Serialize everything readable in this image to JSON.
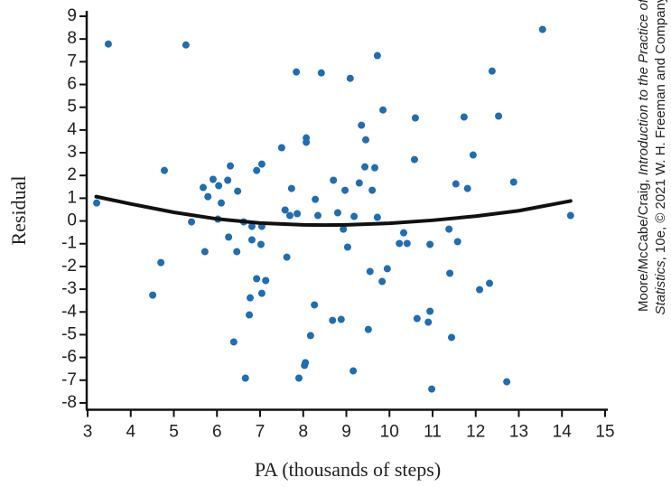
{
  "chart_data": {
    "type": "scatter",
    "xlabel": "PA (thousands of steps)",
    "ylabel": "Residual",
    "credit": {
      "line1": [
        "Moore/McCabe/Craig, ",
        "Introduction to the Practice of"
      ],
      "line2": [
        "Statistics",
        ", 10e, © 2021 W. H. Freeman and Company"
      ]
    },
    "xlim": [
      3,
      15
    ],
    "xticks": [
      3,
      4,
      5,
      6,
      7,
      8,
      9,
      10,
      11,
      12,
      13,
      14,
      15
    ],
    "ylim": [
      -8.3,
      9
    ],
    "yticks": [
      -8,
      -7,
      -6,
      -5,
      -4,
      -3,
      -2,
      -1,
      0,
      1,
      2,
      3,
      4,
      5,
      6,
      7,
      8,
      9
    ],
    "grid": false,
    "series": [
      {
        "type": "scatter",
        "color": "#1f6db3",
        "x": [
          3.21,
          3.48,
          5.28,
          4.51,
          4.7,
          4.78,
          5.41,
          5.68,
          5.72,
          5.79,
          5.91,
          6.04,
          6.02,
          6.1,
          6.25,
          6.31,
          6.27,
          6.39,
          6.48,
          6.46,
          6.62,
          6.66,
          6.75,
          6.77,
          6.81,
          6.81,
          6.92,
          6.92,
          7.02,
          7.04,
          7.04,
          7.04,
          7.13,
          7.5,
          7.58,
          7.62,
          7.69,
          7.73,
          7.84,
          7.86,
          7.9,
          8.03,
          8.05,
          8.07,
          8.07,
          8.17,
          8.26,
          8.28,
          8.34,
          8.42,
          8.68,
          8.7,
          8.8,
          8.88,
          8.93,
          8.97,
          9.03,
          9.09,
          9.16,
          9.18,
          9.3,
          9.35,
          9.43,
          9.45,
          9.51,
          9.55,
          9.6,
          9.66,
          9.72,
          9.72,
          9.83,
          9.85,
          9.95,
          10.23,
          10.33,
          10.41,
          10.58,
          10.6,
          10.64,
          10.9,
          10.94,
          10.94,
          10.98,
          11.38,
          11.4,
          11.44,
          11.54,
          11.58,
          11.73,
          11.81,
          11.94,
          12.09,
          12.32,
          12.38,
          12.53,
          12.72,
          12.88,
          13.55,
          14.2
        ],
        "values": [
          0.79,
          7.78,
          7.74,
          -3.26,
          -1.83,
          2.22,
          -0.04,
          1.47,
          -1.35,
          1.07,
          1.83,
          1.55,
          0.08,
          0.79,
          1.79,
          2.42,
          -0.71,
          -5.32,
          1.31,
          -1.35,
          -0.04,
          -6.91,
          -4.13,
          -3.38,
          -0.83,
          -0.24,
          -2.54,
          2.22,
          -1.03,
          2.5,
          -0.24,
          -3.18,
          -2.62,
          3.22,
          0.48,
          -1.59,
          0.24,
          1.43,
          6.55,
          0.32,
          -6.91,
          -6.35,
          -6.23,
          3.65,
          3.46,
          -5.04,
          -3.69,
          0.95,
          0.24,
          6.51,
          -4.37,
          1.79,
          0.36,
          -4.33,
          -0.36,
          1.35,
          -1.15,
          6.27,
          -6.59,
          0.2,
          1.67,
          4.21,
          2.38,
          3.57,
          -4.77,
          -2.22,
          1.35,
          2.34,
          7.27,
          0.16,
          -2.66,
          4.88,
          -2.1,
          -0.99,
          -0.52,
          -0.99,
          2.7,
          4.53,
          -4.29,
          -4.45,
          -1.03,
          -3.97,
          -7.39,
          -0.36,
          -2.3,
          -5.12,
          1.63,
          -0.91,
          4.57,
          1.43,
          2.9,
          -3.02,
          -2.74,
          6.59,
          4.61,
          -7.07,
          1.71,
          8.42,
          0.24
        ]
      },
      {
        "type": "line",
        "color": "#111111",
        "x": [
          3.2,
          4,
          5,
          6,
          7,
          8,
          8.5,
          9,
          10,
          11,
          12,
          13,
          14.2
        ],
        "values": [
          1.07,
          0.75,
          0.38,
          0.09,
          -0.09,
          -0.17,
          -0.18,
          -0.17,
          -0.1,
          0.03,
          0.21,
          0.45,
          0.88
        ]
      }
    ]
  }
}
